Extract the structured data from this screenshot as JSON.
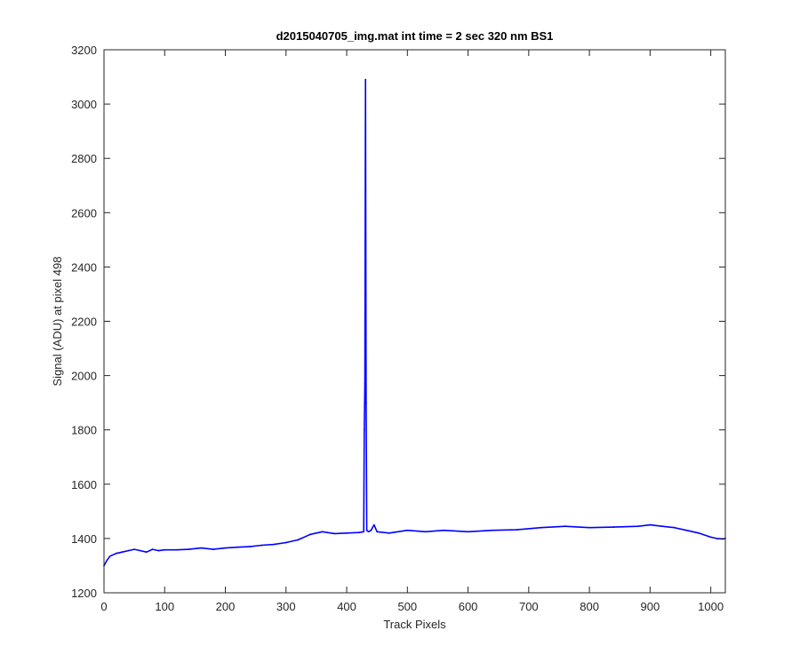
{
  "chart_data": {
    "type": "line",
    "title": "d2015040705_img.mat int time = 2 sec  320 nm BS1",
    "xlabel": "Track Pixels",
    "ylabel": "Signal (ADU) at pixel 498",
    "xlim": [
      0,
      1024
    ],
    "ylim": [
      1200,
      3200
    ],
    "xticks": [
      0,
      100,
      200,
      300,
      400,
      500,
      600,
      700,
      800,
      900,
      1000
    ],
    "yticks": [
      1200,
      1400,
      1600,
      1800,
      2000,
      2200,
      2400,
      2600,
      2800,
      3000,
      3200
    ],
    "grid": false,
    "legend": "none",
    "series": [
      {
        "color": "#0000ff",
        "x": [
          0,
          5,
          10,
          20,
          30,
          40,
          50,
          60,
          70,
          80,
          90,
          100,
          120,
          140,
          160,
          180,
          200,
          220,
          240,
          260,
          280,
          300,
          320,
          340,
          360,
          380,
          400,
          420,
          428,
          429,
          430,
          431,
          432,
          433,
          436,
          440,
          445,
          450,
          470,
          500,
          530,
          560,
          600,
          640,
          680,
          720,
          760,
          800,
          840,
          880,
          900,
          920,
          940,
          960,
          980,
          1000,
          1010,
          1020,
          1024
        ],
        "y": [
          1300,
          1320,
          1335,
          1345,
          1350,
          1355,
          1360,
          1355,
          1350,
          1360,
          1355,
          1358,
          1358,
          1360,
          1365,
          1360,
          1365,
          1368,
          1370,
          1375,
          1378,
          1385,
          1395,
          1415,
          1425,
          1418,
          1420,
          1422,
          1425,
          1800,
          1970,
          3090,
          1900,
          1430,
          1425,
          1430,
          1450,
          1425,
          1420,
          1430,
          1425,
          1430,
          1425,
          1430,
          1432,
          1440,
          1445,
          1440,
          1442,
          1445,
          1450,
          1445,
          1440,
          1430,
          1420,
          1405,
          1400,
          1398,
          1400
        ]
      }
    ]
  }
}
